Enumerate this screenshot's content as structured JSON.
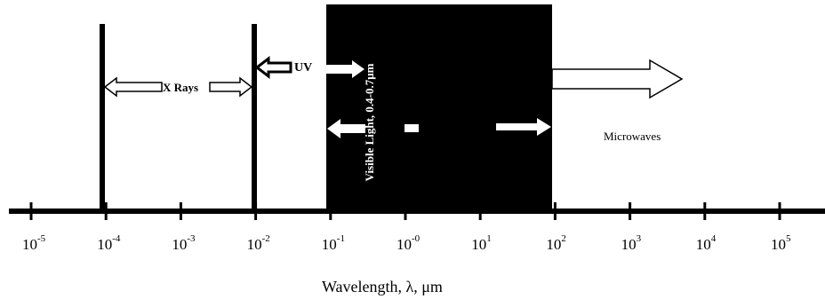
{
  "diagram": {
    "bands": {
      "xrays": "X Rays",
      "uv": "UV",
      "visible": "Visible Light, 0.4-0.7μm",
      "microwaves": "Microwaves"
    },
    "axis": {
      "label": "Wavelength, λ, μm",
      "ticks": [
        {
          "base": "10",
          "exp": "-5"
        },
        {
          "base": "10",
          "exp": "-4"
        },
        {
          "base": "10",
          "exp": "-3"
        },
        {
          "base": "10",
          "exp": "-2"
        },
        {
          "base": "10",
          "exp": "-1"
        },
        {
          "base": "10",
          "exp": "-0"
        },
        {
          "base": "10",
          "exp": "1"
        },
        {
          "base": "10",
          "exp": "2"
        },
        {
          "base": "10",
          "exp": "3"
        },
        {
          "base": "10",
          "exp": "4"
        },
        {
          "base": "10",
          "exp": "5"
        }
      ]
    },
    "colors": {
      "ink": "#000000",
      "paper": "#ffffff"
    }
  }
}
